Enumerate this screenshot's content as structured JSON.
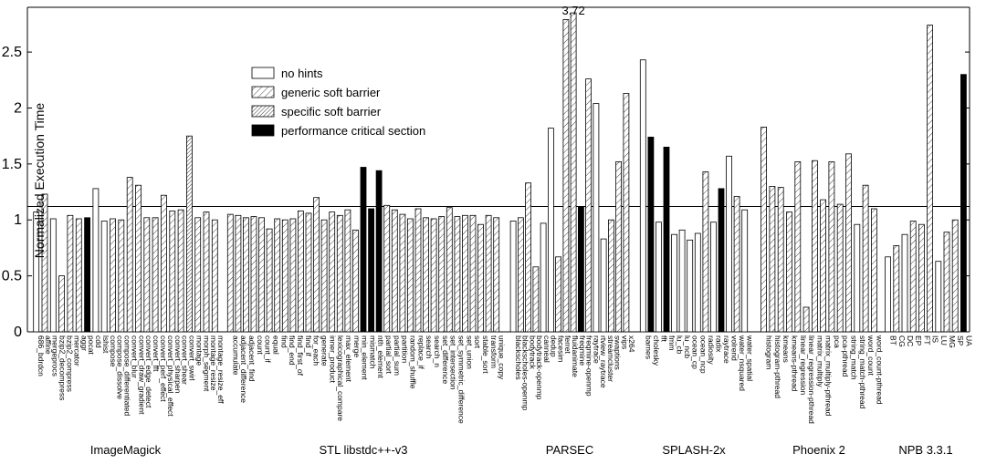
{
  "chart_data": {
    "type": "bar",
    "ylabel": "Normalized Execution Time",
    "ylim": [
      0,
      2.9
    ],
    "yticks": [
      0,
      0.5,
      1,
      1.5,
      2,
      2.5
    ],
    "ytick_labels": [
      "0",
      "0.5",
      "1",
      "1.5",
      "2",
      "2.5"
    ],
    "reference_line_y": 1.12,
    "grid": false,
    "legend_position": "upper-left-center",
    "series": [
      {
        "name": "no hints",
        "pattern": "none",
        "color": "#ffffff"
      },
      {
        "name": "generic soft barrier",
        "pattern": "sparse-hatch",
        "color": "#ffffff"
      },
      {
        "name": "specific soft barrier",
        "pattern": "dense-hatch",
        "color": "#ffffff"
      },
      {
        "name": "performance critical section",
        "pattern": "solid",
        "color": "#000000"
      }
    ],
    "groups": [
      {
        "name": "ImageMagick",
        "benchmarks": [
          {
            "label": "686_bdrdcn",
            "values": [
              1.07,
              1.23
            ]
          },
          {
            "label": "add",
            "values": [
              1.01
            ]
          },
          {
            "label": "affine",
            "values": [
              0.5,
              1.04
            ]
          },
          {
            "label": "append",
            "values": [
              1.02
            ]
          },
          {
            "label": "autolevel",
            "values": [
              null,
              null,
              null,
              1.02
            ]
          },
          {
            "label": "bench",
            "values": [
              1.28
            ]
          },
          {
            "label": "blur",
            "values": []
          },
          {
            "label": "bzip2_compress",
            "values": [
              1.0
            ]
          },
          {
            "label": "bzip2_decompress",
            "values": [
              1.0
            ]
          },
          {
            "label": "charcoal_effect",
            "values": [
              1.01
            ]
          },
          {
            "label": "compose",
            "values": [
              0.99
            ]
          },
          {
            "label": "compose_dissolve",
            "values": [
              1.38
            ]
          },
          {
            "label": "compose_differentiated",
            "values": [
              1.31
            ]
          },
          {
            "label": "convert_blur",
            "values": [
              1.02
            ]
          },
          {
            "label": "convert_draw_gradient",
            "values": [
              1.02
            ]
          },
          {
            "label": "convert_edge_detect",
            "values": [
              1.22
            ]
          },
          {
            "label": "convert_fft",
            "values": [
              1.08
            ]
          },
          {
            "label": "convert_perf_effect",
            "values": [
              1.09
            ]
          },
          {
            "label": "convert_sharpen",
            "values": [
              1.75
            ]
          },
          {
            "label": "convert_shear",
            "values": [
              1.02
            ]
          },
          {
            "label": "convert_swirl",
            "values": [
              1.07
            ]
          },
          {
            "label": "lasthistory",
            "values": [
              1.0
            ]
          }
        ],
        "visible_labels": [
          "686_bdrdcn",
          "affine",
          "mergeprocs",
          "bzip2_decompress",
          "bzip2_compress",
          "mercator",
          "aggr",
          "pocat",
          "cdd",
          "lshist",
          "compose",
          "compose_dissolve",
          "compose_differentiated",
          "convert_blur",
          "convert_draw_gradient",
          "convert_edge_detect",
          "convert_fft",
          "convert_perf_effect",
          "convert_physical_effect",
          "convert_sharpen",
          "convert_shear",
          "convert_swirl",
          "montage",
          "morph_segment",
          "montage_resize",
          "montage_resize_eff"
        ]
      },
      {
        "name": "STL libstdc++-v3",
        "visible_labels": [
          "accumulate",
          "adjacent_difference",
          "adjacent_find",
          "count",
          "count_if",
          "equal",
          "find",
          "find_end",
          "find_first_of",
          "find_if",
          "for_each",
          "generate",
          "inner_product",
          "lexicographical_compare",
          "max_element",
          "merge",
          "min_element",
          "mismatch",
          "nth_element",
          "partial_sort",
          "partial_sum",
          "partition",
          "random_shuffle",
          "replace_if",
          "search",
          "search_n",
          "set_difference",
          "set_intersection",
          "set_symmetric_difference",
          "set_union",
          "sort",
          "stable_sort",
          "transform",
          "unique_copy"
        ]
      },
      {
        "name": "PARSEC",
        "visible_labels": [
          "blackscholes",
          "blackscholes-openmp",
          "bodytrack",
          "bodytrack-openmp",
          "canneal",
          "dedup",
          "facesim",
          "ferret",
          "fluidanimate",
          "freqmine",
          "freqmine-openmp",
          "raytrace",
          "rtview_raytrace",
          "streamcluster",
          "swaptions",
          "vips",
          "x264"
        ]
      },
      {
        "name": "SPLASH-2x",
        "visible_labels": [
          "barnes",
          "cholesky",
          "fft",
          "fmm",
          "lu_cb",
          "lu_ncb",
          "ocean_cp",
          "ocean_ncp",
          "radiosity",
          "radix",
          "raytrace",
          "volrend",
          "water_nsquared",
          "water_spatial"
        ]
      },
      {
        "name": "Phoenix 2",
        "visible_labels": [
          "histogram",
          "histogram-pthread",
          "kmeans",
          "kmeans-pthread",
          "linear_regression",
          "linear_regression-pthread",
          "matrix_multiply",
          "matrix_multiply-pthread",
          "pca",
          "pca-pthread",
          "string_match",
          "string_match-pthread",
          "word_count",
          "word_count-pthread"
        ]
      },
      {
        "name": "NPB 3.3.1",
        "visible_labels": [
          "BT",
          "CG",
          "DC",
          "EP",
          "FT",
          "IS",
          "LU",
          "MG",
          "SP",
          "UA"
        ]
      }
    ],
    "bars": [
      {
        "g": 0,
        "v": 1.07,
        "s": 0
      },
      {
        "g": 0,
        "v": 1.23,
        "s": 1
      },
      {
        "g": 0,
        "v": 1.01,
        "s": 0
      },
      {
        "g": 0,
        "v": 0.5,
        "s": 1
      },
      {
        "g": 0,
        "v": 1.04,
        "s": 1
      },
      {
        "g": 0,
        "v": 1.01,
        "s": 1
      },
      {
        "g": 0,
        "v": 1.02,
        "s": 3
      },
      {
        "g": 0,
        "v": 1.28,
        "s": 0
      },
      {
        "g": 0,
        "v": 0.99,
        "s": 0
      },
      {
        "g": 0,
        "v": 1.01,
        "s": 1
      },
      {
        "g": 0,
        "v": 1.0,
        "s": 1
      },
      {
        "g": 0,
        "v": 1.38,
        "s": 1
      },
      {
        "g": 0,
        "v": 1.31,
        "s": 1
      },
      {
        "g": 0,
        "v": 1.02,
        "s": 1
      },
      {
        "g": 0,
        "v": 1.02,
        "s": 1
      },
      {
        "g": 0,
        "v": 1.22,
        "s": 1
      },
      {
        "g": 0,
        "v": 1.08,
        "s": 1
      },
      {
        "g": 0,
        "v": 1.09,
        "s": 1
      },
      {
        "g": 0,
        "v": 1.75,
        "s": 2
      },
      {
        "g": 0,
        "v": 1.02,
        "s": 1
      },
      {
        "g": 0,
        "v": 1.07,
        "s": 1
      },
      {
        "g": 0,
        "v": 1.0,
        "s": 1
      },
      {
        "g": 1,
        "v": 1.05,
        "s": 1
      },
      {
        "g": 1,
        "v": 1.04,
        "s": 1
      },
      {
        "g": 1,
        "v": 1.02,
        "s": 1
      },
      {
        "g": 1,
        "v": 1.03,
        "s": 1
      },
      {
        "g": 1,
        "v": 1.02,
        "s": 1
      },
      {
        "g": 1,
        "v": 0.92,
        "s": 1
      },
      {
        "g": 1,
        "v": 1.01,
        "s": 1
      },
      {
        "g": 1,
        "v": 1.0,
        "s": 1
      },
      {
        "g": 1,
        "v": 1.01,
        "s": 1
      },
      {
        "g": 1,
        "v": 1.08,
        "s": 1
      },
      {
        "g": 1,
        "v": 1.06,
        "s": 1
      },
      {
        "g": 1,
        "v": 1.2,
        "s": 1
      },
      {
        "g": 1,
        "v": 1.0,
        "s": 1
      },
      {
        "g": 1,
        "v": 1.07,
        "s": 1
      },
      {
        "g": 1,
        "v": 1.04,
        "s": 1
      },
      {
        "g": 1,
        "v": 1.09,
        "s": 1
      },
      {
        "g": 1,
        "v": 0.91,
        "s": 1
      },
      {
        "g": 1,
        "v": 1.47,
        "s": 3
      },
      {
        "g": 1,
        "v": 1.1,
        "s": 3
      },
      {
        "g": 1,
        "v": 1.44,
        "s": 3
      },
      {
        "g": 1,
        "v": 1.13,
        "s": 1
      },
      {
        "g": 1,
        "v": 1.09,
        "s": 1
      },
      {
        "g": 1,
        "v": 1.05,
        "s": 1
      },
      {
        "g": 1,
        "v": 1.01,
        "s": 1
      },
      {
        "g": 1,
        "v": 1.1,
        "s": 1
      },
      {
        "g": 1,
        "v": 1.02,
        "s": 1
      },
      {
        "g": 1,
        "v": 1.01,
        "s": 1
      },
      {
        "g": 1,
        "v": 1.03,
        "s": 1
      },
      {
        "g": 1,
        "v": 1.11,
        "s": 1
      },
      {
        "g": 1,
        "v": 1.03,
        "s": 1
      },
      {
        "g": 1,
        "v": 1.04,
        "s": 1
      },
      {
        "g": 1,
        "v": 1.04,
        "s": 1
      },
      {
        "g": 1,
        "v": 0.96,
        "s": 1
      },
      {
        "g": 1,
        "v": 1.04,
        "s": 1
      },
      {
        "g": 1,
        "v": 1.02,
        "s": 1
      },
      {
        "g": 2,
        "v": 0.99,
        "s": 0
      },
      {
        "g": 2,
        "v": 1.02,
        "s": 1
      },
      {
        "g": 2,
        "v": 1.33,
        "s": 1
      },
      {
        "g": 2,
        "v": 0.58,
        "s": 1
      },
      {
        "g": 2,
        "v": 0.97,
        "s": 0
      },
      {
        "g": 2,
        "v": 1.82,
        "s": 0
      },
      {
        "g": 2,
        "v": 0.67,
        "s": 1
      },
      {
        "g": 2,
        "v": 2.79,
        "s": 1
      },
      {
        "g": 2,
        "v": 3.72,
        "s": 1
      },
      {
        "g": 2,
        "v": 1.12,
        "s": 3
      },
      {
        "g": 2,
        "v": 2.26,
        "s": 1
      },
      {
        "g": 2,
        "v": 2.04,
        "s": 0
      },
      {
        "g": 2,
        "v": 0.83,
        "s": 0
      },
      {
        "g": 2,
        "v": 1.0,
        "s": 1
      },
      {
        "g": 2,
        "v": 1.52,
        "s": 1
      },
      {
        "g": 2,
        "v": 2.13,
        "s": 1
      },
      {
        "g": 3,
        "v": 2.43,
        "s": 0
      },
      {
        "g": 3,
        "v": 1.74,
        "s": 3
      },
      {
        "g": 3,
        "v": 0.98,
        "s": 0
      },
      {
        "g": 3,
        "v": 1.65,
        "s": 3
      },
      {
        "g": 3,
        "v": 0.87,
        "s": 0
      },
      {
        "g": 3,
        "v": 0.91,
        "s": 0
      },
      {
        "g": 3,
        "v": 0.82,
        "s": 0
      },
      {
        "g": 3,
        "v": 0.88,
        "s": 0
      },
      {
        "g": 3,
        "v": 1.43,
        "s": 1
      },
      {
        "g": 3,
        "v": 0.98,
        "s": 0
      },
      {
        "g": 3,
        "v": 1.28,
        "s": 3
      },
      {
        "g": 3,
        "v": 1.57,
        "s": 0
      },
      {
        "g": 3,
        "v": 1.21,
        "s": 1
      },
      {
        "g": 3,
        "v": 1.09,
        "s": 0
      },
      {
        "g": 4,
        "v": 1.83,
        "s": 1
      },
      {
        "g": 4,
        "v": 1.3,
        "s": 1
      },
      {
        "g": 4,
        "v": 1.29,
        "s": 1
      },
      {
        "g": 4,
        "v": 1.07,
        "s": 1
      },
      {
        "g": 4,
        "v": 1.52,
        "s": 1
      },
      {
        "g": 4,
        "v": 0.22,
        "s": 1
      },
      {
        "g": 4,
        "v": 1.53,
        "s": 1
      },
      {
        "g": 4,
        "v": 1.18,
        "s": 1
      },
      {
        "g": 4,
        "v": 1.52,
        "s": 1
      },
      {
        "g": 4,
        "v": 1.14,
        "s": 1
      },
      {
        "g": 4,
        "v": 1.59,
        "s": 1
      },
      {
        "g": 4,
        "v": 0.96,
        "s": 0
      },
      {
        "g": 4,
        "v": 1.31,
        "s": 1
      },
      {
        "g": 4,
        "v": 1.1,
        "s": 1
      },
      {
        "g": 5,
        "v": 0.67,
        "s": 0
      },
      {
        "g": 5,
        "v": 0.77,
        "s": 1
      },
      {
        "g": 5,
        "v": 0.87,
        "s": 0
      },
      {
        "g": 5,
        "v": 0.99,
        "s": 1
      },
      {
        "g": 5,
        "v": 0.96,
        "s": 1
      },
      {
        "g": 5,
        "v": 2.74,
        "s": 1
      },
      {
        "g": 5,
        "v": 0.63,
        "s": 0
      },
      {
        "g": 5,
        "v": 0.89,
        "s": 1
      },
      {
        "g": 5,
        "v": 1.0,
        "s": 1
      },
      {
        "g": 5,
        "v": 2.3,
        "s": 3
      }
    ],
    "annotations": [
      {
        "text": "3.72"
      }
    ]
  }
}
